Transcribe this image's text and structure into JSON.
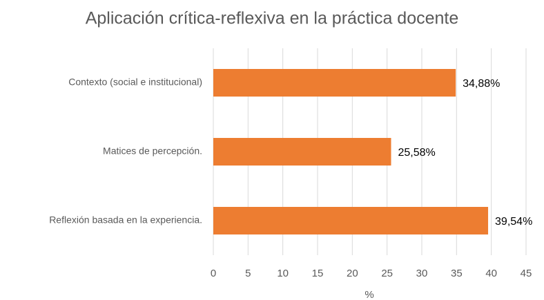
{
  "chart_data": {
    "type": "bar",
    "orientation": "horizontal",
    "title": "Aplicación crítica-reflexiva en la práctica docente",
    "categories": [
      "Contexto (social e institucional)",
      "Matices de percepción.",
      "Reflexión basada en la experiencia."
    ],
    "values": [
      34.88,
      25.58,
      39.54
    ],
    "value_labels": [
      "34,88%",
      "25,58%",
      "39,54%"
    ],
    "color": "#ed7d31",
    "xlabel": "%",
    "xlim": [
      0,
      45
    ],
    "xticks": [
      0,
      5,
      10,
      15,
      20,
      25,
      30,
      35,
      40,
      45
    ],
    "grid": true
  }
}
